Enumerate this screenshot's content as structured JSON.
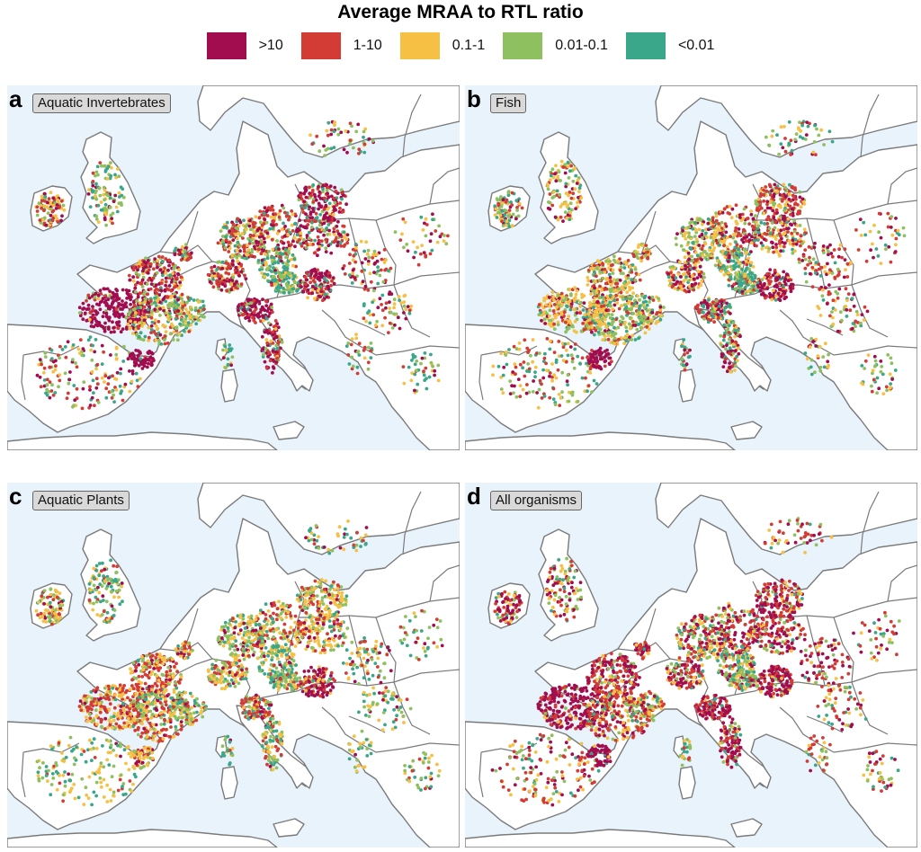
{
  "title": "Average MRAA to RTL ratio",
  "legend": [
    {
      "label": ">10",
      "color": "#a10d4f"
    },
    {
      "label": "1-10",
      "color": "#d33b35"
    },
    {
      "label": "0.1-1",
      "color": "#f6c044"
    },
    {
      "label": "0.01-0.1",
      "color": "#8fc05f"
    },
    {
      "label": "<0.01",
      "color": "#3aa68a"
    }
  ],
  "colors": {
    "sea": "#e9f3fb",
    "land": "#ffffff",
    "border": "#7a7a7a",
    "tag_background": "#d9d9d9"
  },
  "panels": [
    {
      "letter": "a",
      "label": "Aquatic Invertebrates"
    },
    {
      "letter": "b",
      "label": "Fish"
    },
    {
      "letter": "c",
      "label": "Aquatic Plants"
    },
    {
      "letter": "d",
      "label": "All organisms"
    }
  ]
}
